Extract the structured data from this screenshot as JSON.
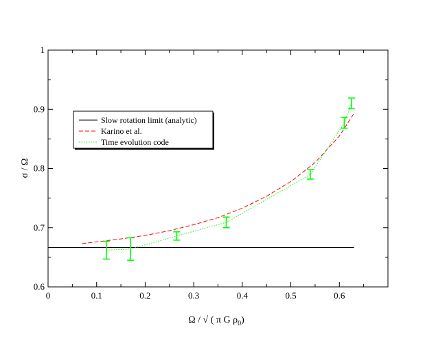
{
  "chart_data": {
    "type": "line",
    "title": "",
    "xlabel": "Ω / √ ( π G ρ",
    "xlabel_subscript": "0",
    "xlabel_close": ")",
    "ylabel": "σ / Ω",
    "xlim": [
      0,
      0.7
    ],
    "ylim": [
      0.6,
      1.0
    ],
    "x_ticks": [
      "0",
      "0.1",
      "0.2",
      "0.3",
      "0.4",
      "0.5",
      "0.6"
    ],
    "y_ticks": [
      "0.6",
      "0.7",
      "0.8",
      "0.9",
      "1"
    ],
    "grid": false,
    "legend_placement": "left",
    "series": [
      {
        "name": "Slow rotation limit (analytic)",
        "color": "#000000",
        "style": "solid",
        "x": [
          0.0,
          0.63
        ],
        "y": [
          0.6667,
          0.6667
        ]
      },
      {
        "name": "Karino et al.",
        "color": "#ff0000",
        "style": "dashed",
        "x": [
          0.07,
          0.1,
          0.15,
          0.2,
          0.25,
          0.3,
          0.35,
          0.4,
          0.45,
          0.5,
          0.55,
          0.6,
          0.63
        ],
        "y": [
          0.673,
          0.676,
          0.681,
          0.687,
          0.695,
          0.705,
          0.717,
          0.733,
          0.753,
          0.778,
          0.81,
          0.855,
          0.893
        ]
      },
      {
        "name": "Time evolution code",
        "color": "#00ff00",
        "style": "dotted",
        "x": [
          0.12,
          0.17,
          0.265,
          0.367,
          0.54,
          0.61,
          0.625
        ],
        "y": [
          0.662,
          0.664,
          0.686,
          0.709,
          0.79,
          0.877,
          0.91
        ],
        "errors": [
          0.015,
          0.019,
          0.007,
          0.009,
          0.008,
          0.009,
          0.009
        ]
      }
    ]
  }
}
